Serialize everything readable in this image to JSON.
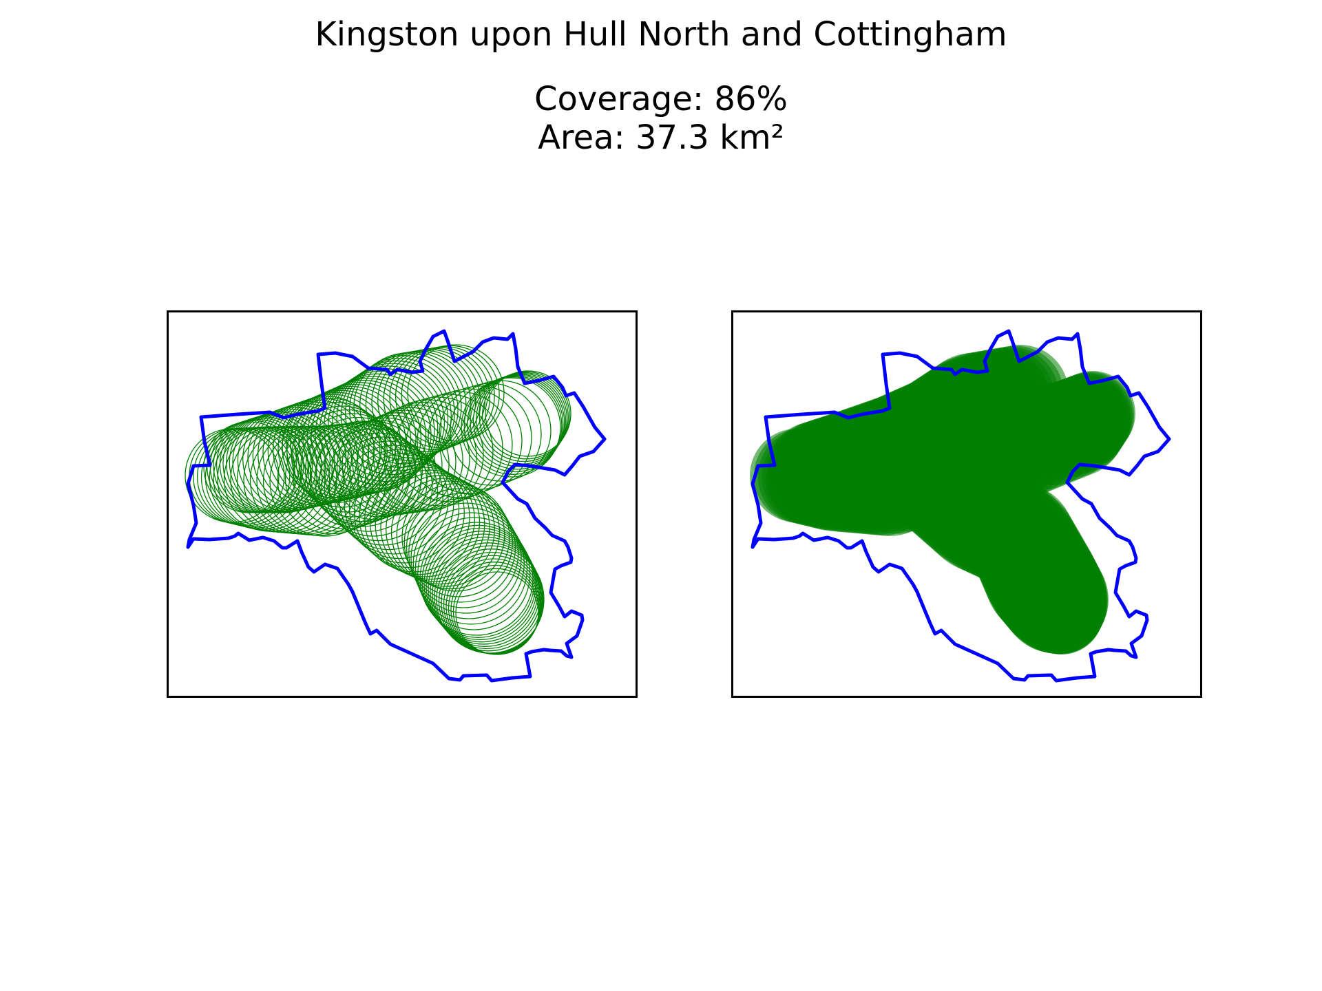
{
  "title": "Kingston upon Hull North and Cottingham",
  "coverage_label": "Coverage: 86%",
  "area_label": "Area: 37.3 km²",
  "colors": {
    "boundary": "#0000ff",
    "coverage": "#008000",
    "frame": "#000000",
    "background": "#ffffff"
  },
  "panels": [
    {
      "style": "outline circles"
    },
    {
      "style": "filled circles"
    }
  ]
}
